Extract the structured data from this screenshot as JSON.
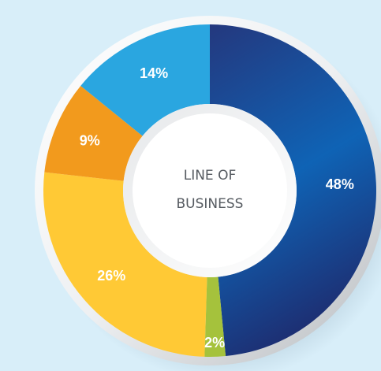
{
  "chart_data": {
    "type": "pie",
    "title": "LINE OF BUSINESS",
    "slices": [
      {
        "value": 48,
        "label": "48%",
        "color": "#1b4a9c"
      },
      {
        "value": 2,
        "label": "2%",
        "color": "#a5c23c"
      },
      {
        "value": 26,
        "label": "26%",
        "color": "#ffc935"
      },
      {
        "value": 9,
        "label": "9%",
        "color": "#f29a1d"
      },
      {
        "value": 14,
        "label": "14%",
        "color": "#2aa6e0"
      }
    ]
  },
  "center": {
    "line1": "LINE OF",
    "line2": "BUSINESS"
  }
}
